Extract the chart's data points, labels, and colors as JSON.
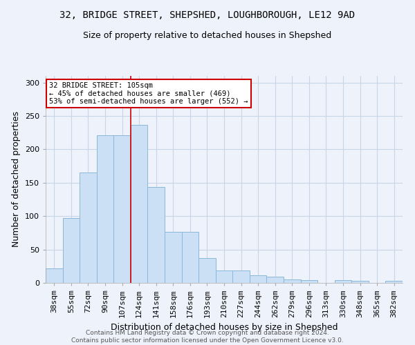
{
  "title": "32, BRIDGE STREET, SHEPSHED, LOUGHBOROUGH, LE12 9AD",
  "subtitle": "Size of property relative to detached houses in Shepshed",
  "xlabel": "Distribution of detached houses by size in Shepshed",
  "ylabel": "Number of detached properties",
  "bin_labels": [
    "38sqm",
    "55sqm",
    "72sqm",
    "90sqm",
    "107sqm",
    "124sqm",
    "141sqm",
    "158sqm",
    "176sqm",
    "193sqm",
    "210sqm",
    "227sqm",
    "244sqm",
    "262sqm",
    "279sqm",
    "296sqm",
    "313sqm",
    "330sqm",
    "348sqm",
    "365sqm",
    "382sqm"
  ],
  "bin_values": [
    22,
    97,
    165,
    221,
    221,
    237,
    144,
    76,
    76,
    37,
    19,
    19,
    11,
    9,
    5,
    4,
    0,
    4,
    3,
    0,
    3
  ],
  "bar_color": "#cce0f5",
  "bar_edge_color": "#8ab8d8",
  "grid_color": "#c8d4e8",
  "bg_color": "#eef2fb",
  "property_label": "32 BRIDGE STREET: 105sqm",
  "annotation_line1": "← 45% of detached houses are smaller (469)",
  "annotation_line2": "53% of semi-detached houses are larger (552) →",
  "annotation_box_color": "#ffffff",
  "annotation_box_edge": "#cc0000",
  "vline_color": "#cc0000",
  "footer_line1": "Contains HM Land Registry data © Crown copyright and database right 2024.",
  "footer_line2": "Contains public sector information licensed under the Open Government Licence v3.0.",
  "ylim": [
    0,
    310
  ],
  "yticks": [
    0,
    50,
    100,
    150,
    200,
    250,
    300
  ],
  "vline_x": 4.5,
  "title_fontsize": 10,
  "subtitle_fontsize": 9,
  "axis_label_fontsize": 9,
  "tick_fontsize": 8,
  "footer_fontsize": 6.5
}
